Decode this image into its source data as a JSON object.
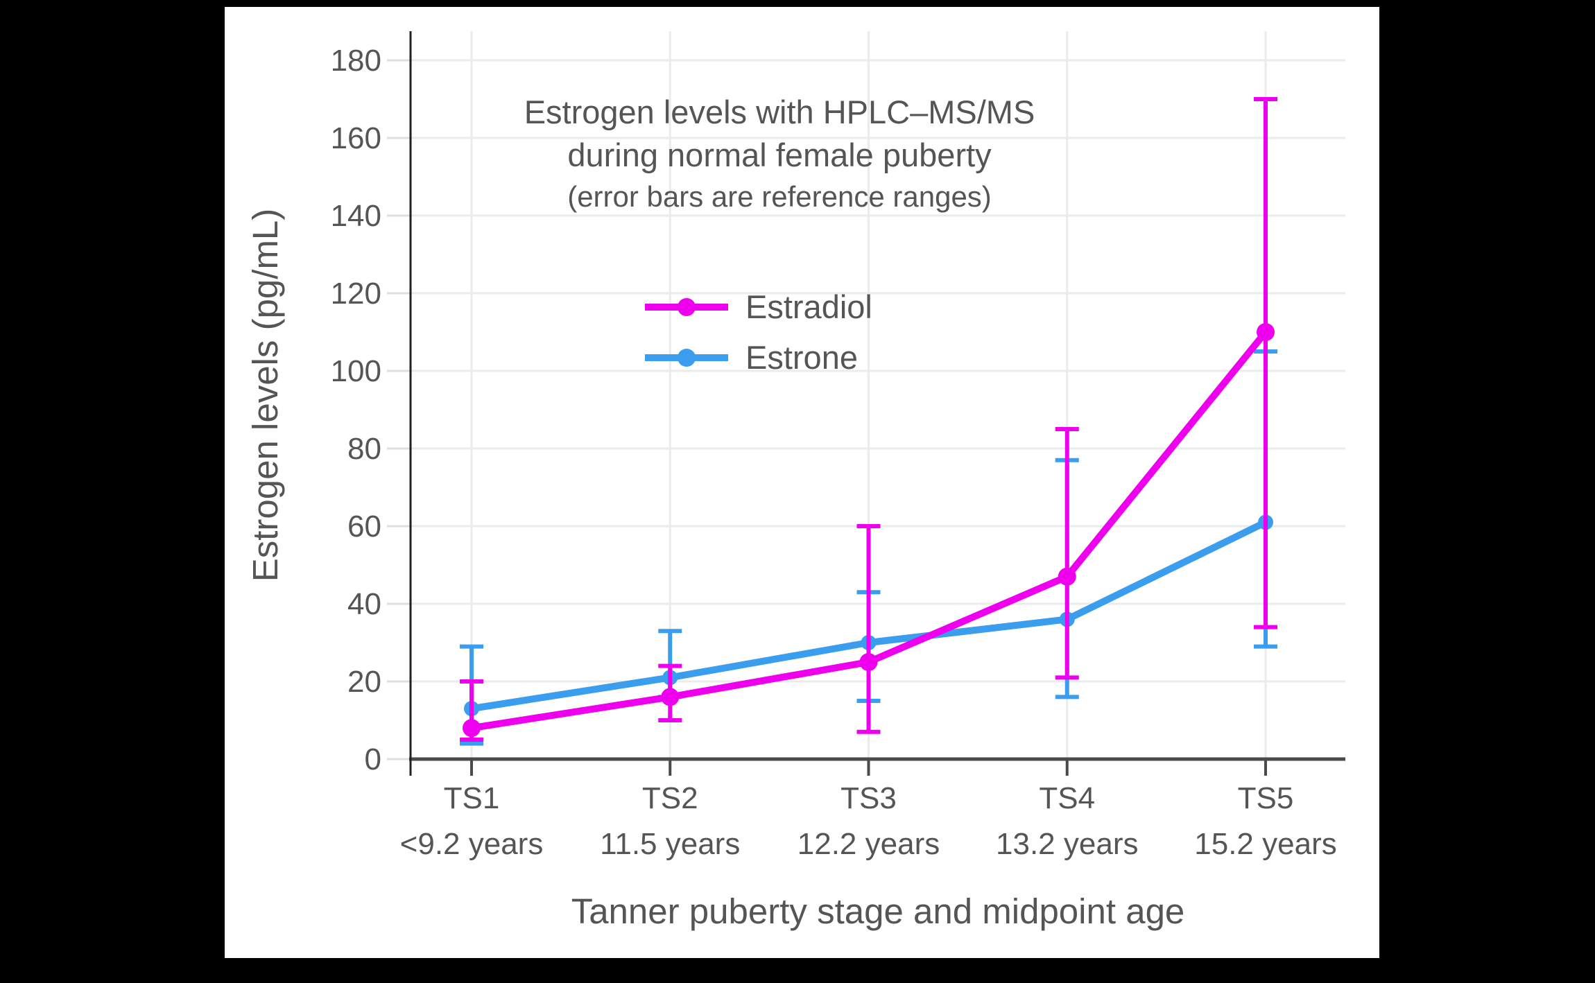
{
  "chart_data": {
    "type": "line",
    "title": "Estrogen levels with HPLC–MS/MS during normal female puberty",
    "title_lines": [
      "Estrogen levels with HPLC–MS/MS",
      "during normal female puberty"
    ],
    "subtitle": "(error bars are reference ranges)",
    "xlabel": "Tanner puberty stage and midpoint age",
    "ylabel": "Estrogen levels (pg/mL)",
    "categories": [
      "TS1",
      "TS2",
      "TS3",
      "TS4",
      "TS5"
    ],
    "category_ages": [
      "<9.2 years",
      "11.5 years",
      "12.2 years",
      "13.2 years",
      "15.2 years"
    ],
    "yticks": [
      0,
      20,
      40,
      60,
      80,
      100,
      120,
      140,
      160,
      180
    ],
    "ylim": [
      0,
      187.5
    ],
    "grid": true,
    "legend_position": "inside-upper-center",
    "error_bar_meaning": "reference ranges",
    "series": [
      {
        "name": "Estradiol",
        "color": "#ee00ee",
        "values": [
          8,
          16,
          25,
          47,
          110
        ],
        "error_low": [
          5,
          10,
          7,
          21,
          34
        ],
        "error_high": [
          20,
          24,
          60,
          85,
          170
        ]
      },
      {
        "name": "Estrone",
        "color": "#3b9ded",
        "values": [
          13,
          21,
          30,
          36,
          61
        ],
        "error_low": [
          4,
          16,
          15,
          16,
          29
        ],
        "error_high": [
          29,
          33,
          43,
          77,
          105
        ]
      }
    ],
    "colors": {
      "text": "#555555",
      "grid": "#ebebeb",
      "y_tick": "#dfdfdf",
      "x_axis": "#4a4a4a",
      "y_axis": "#222222",
      "canvas": "#ffffff",
      "frame": "#000000"
    }
  }
}
